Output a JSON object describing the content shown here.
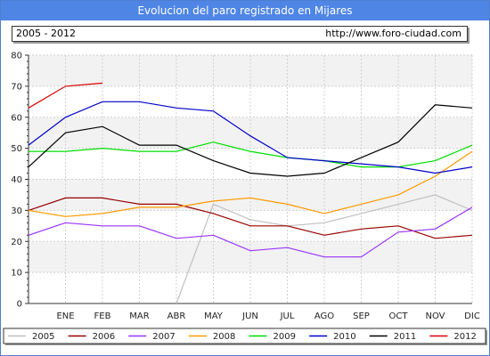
{
  "header": {
    "title": "Evolucion del paro registrado en Mijares",
    "period": "2005 - 2012",
    "url": "http://www.foro-ciudad.com"
  },
  "chart_data": {
    "type": "line",
    "categories": [
      "",
      "ENE",
      "FEB",
      "MAR",
      "ABR",
      "MAY",
      "JUN",
      "JUL",
      "AGO",
      "SEP",
      "OCT",
      "NOV",
      "DIC"
    ],
    "ylim": [
      0,
      80
    ],
    "yticks": [
      0,
      10,
      20,
      30,
      40,
      50,
      60,
      70,
      80
    ],
    "grid": true,
    "legend_position": "bottom",
    "series": [
      {
        "name": "2005",
        "color": "#c0c0c0",
        "points": [
          [
            4,
            0
          ],
          [
            5,
            32
          ],
          [
            6,
            27
          ],
          [
            7,
            25
          ],
          [
            8,
            26
          ],
          [
            9,
            29
          ],
          [
            10,
            32
          ],
          [
            11,
            35
          ],
          [
            12,
            30
          ]
        ]
      },
      {
        "name": "2006",
        "color": "#990000",
        "points": [
          [
            0,
            30
          ],
          [
            1,
            34
          ],
          [
            2,
            34
          ],
          [
            3,
            32
          ],
          [
            4,
            32
          ],
          [
            5,
            29
          ],
          [
            6,
            25
          ],
          [
            7,
            25
          ],
          [
            8,
            22
          ],
          [
            9,
            24
          ],
          [
            10,
            25
          ],
          [
            11,
            21
          ],
          [
            12,
            22
          ]
        ]
      },
      {
        "name": "2007",
        "color": "#9933ff",
        "points": [
          [
            0,
            22
          ],
          [
            1,
            26
          ],
          [
            2,
            25
          ],
          [
            3,
            25
          ],
          [
            4,
            21
          ],
          [
            5,
            22
          ],
          [
            6,
            17
          ],
          [
            7,
            18
          ],
          [
            8,
            15
          ],
          [
            9,
            15
          ],
          [
            10,
            23
          ],
          [
            11,
            24
          ],
          [
            12,
            31
          ]
        ]
      },
      {
        "name": "2008",
        "color": "#ff9900",
        "points": [
          [
            0,
            30
          ],
          [
            1,
            28
          ],
          [
            2,
            29
          ],
          [
            3,
            31
          ],
          [
            4,
            31
          ],
          [
            5,
            33
          ],
          [
            6,
            34
          ],
          [
            7,
            32
          ],
          [
            8,
            29
          ],
          [
            9,
            32
          ],
          [
            10,
            35
          ],
          [
            11,
            41
          ],
          [
            12,
            49
          ]
        ]
      },
      {
        "name": "2009",
        "color": "#00dd00",
        "points": [
          [
            0,
            49
          ],
          [
            1,
            49
          ],
          [
            2,
            50
          ],
          [
            3,
            49
          ],
          [
            4,
            49
          ],
          [
            5,
            52
          ],
          [
            6,
            49
          ],
          [
            7,
            47
          ],
          [
            8,
            46
          ],
          [
            9,
            44
          ],
          [
            10,
            44
          ],
          [
            11,
            46
          ],
          [
            12,
            51
          ]
        ]
      },
      {
        "name": "2010",
        "color": "#0000cc",
        "points": [
          [
            0,
            51
          ],
          [
            1,
            60
          ],
          [
            2,
            65
          ],
          [
            3,
            65
          ],
          [
            4,
            63
          ],
          [
            5,
            62
          ],
          [
            6,
            54
          ],
          [
            7,
            47
          ],
          [
            8,
            46
          ],
          [
            9,
            45
          ],
          [
            10,
            44
          ],
          [
            11,
            42
          ],
          [
            12,
            44
          ]
        ]
      },
      {
        "name": "2011",
        "color": "#000000",
        "points": [
          [
            0,
            44
          ],
          [
            1,
            55
          ],
          [
            2,
            57
          ],
          [
            3,
            51
          ],
          [
            4,
            51
          ],
          [
            5,
            46
          ],
          [
            6,
            42
          ],
          [
            7,
            41
          ],
          [
            8,
            42
          ],
          [
            9,
            47
          ],
          [
            10,
            52
          ],
          [
            11,
            64
          ],
          [
            12,
            63
          ]
        ]
      },
      {
        "name": "2012",
        "color": "#dd0000",
        "points": [
          [
            0,
            63
          ],
          [
            1,
            70
          ],
          [
            2,
            71
          ]
        ]
      }
    ]
  }
}
